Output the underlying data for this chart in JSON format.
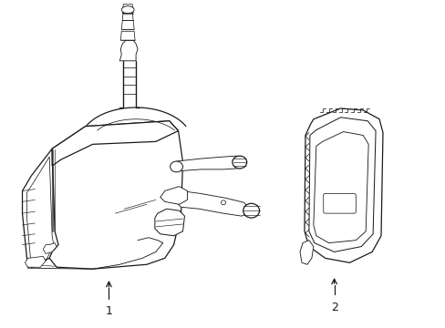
{
  "background_color": "#ffffff",
  "line_color": "#1a1a1a",
  "label1": "1",
  "label2": "2",
  "figsize": [
    4.89,
    3.6
  ],
  "dpi": 100
}
